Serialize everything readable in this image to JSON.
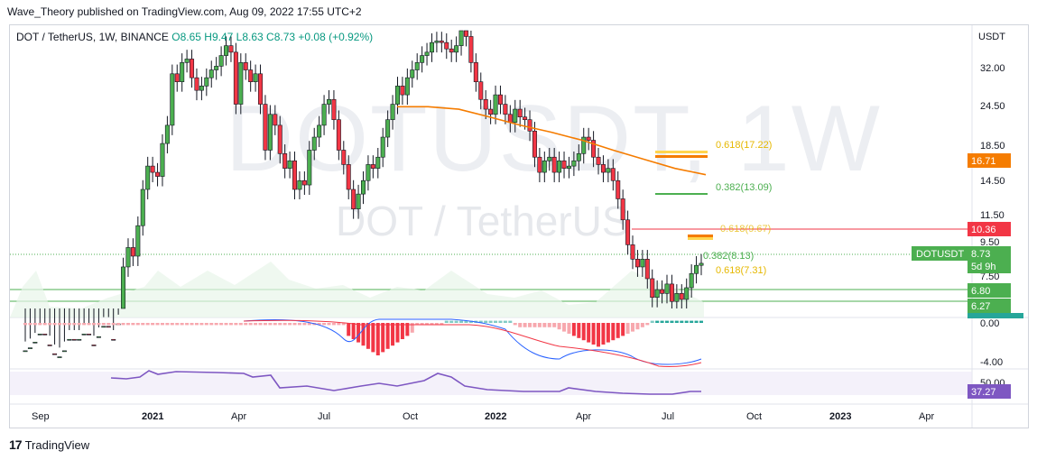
{
  "header": {
    "published": "Wave_Theory published on TradingView.com, Aug 09, 2022 17:55 UTC+2"
  },
  "legend": {
    "symbol": "DOT / TetherUS, 1W, BINANCE",
    "ohlc": "O8.65  H9.47  L8.63  C8.73",
    "change": "+0.08 (+0.92%)"
  },
  "watermark": {
    "main": "DOTUSDT, 1W",
    "sub": "DOT / TetherUS"
  },
  "brand": {
    "name": "TradingView"
  },
  "colors": {
    "up": "#4caf50",
    "down": "#f23645",
    "ma": "#f57c00",
    "fib": "#ffd54f",
    "rsi": "#7e57c2"
  },
  "chart_data": {
    "type": "candlestick",
    "title": "DOT / TetherUS, 1W, BINANCE",
    "currency": "USDT",
    "y_scale": "log",
    "x_ticks": [
      "Sep",
      "2021",
      "Apr",
      "Jul",
      "Oct",
      "2022",
      "Apr",
      "Jul",
      "Oct",
      "2023",
      "Apr"
    ],
    "y_ticks": [
      "32.00",
      "24.50",
      "18.50",
      "14.50",
      "11.50",
      "9.50",
      "7.50",
      "0.00",
      "-4.00",
      "50.00"
    ],
    "price_labels": [
      {
        "value": "16.71",
        "kind": "ma"
      },
      {
        "value": "10.36",
        "kind": "resistance"
      },
      {
        "value": "8.73",
        "kind": "last",
        "symbol": "DOTUSDT",
        "timer": "5d 9h"
      },
      {
        "value": "6.80",
        "kind": "support"
      },
      {
        "value": "6.27",
        "kind": "support"
      },
      {
        "value": "37.27",
        "kind": "rsi"
      }
    ],
    "fib_labels": [
      {
        "text": "0.618(17.22)",
        "color": "#e6b800"
      },
      {
        "text": "0.382(13.09)",
        "color": "#4caf50"
      },
      {
        "text": "0.382(8.13)",
        "color": "#4caf50"
      },
      {
        "text": "0.618(7.31)",
        "color": "#e6b800"
      }
    ],
    "series": [
      {
        "name": "Close",
        "values": [
          4.6,
          4.7,
          4.9,
          5.2,
          4.8,
          4.5,
          4.3,
          4.4,
          4.6,
          5.0,
          4.9,
          5.0,
          5.2,
          4.8,
          4.6,
          5.1,
          5.5,
          5.0,
          4.9,
          5.6,
          8.5,
          9.8,
          9.2,
          11.5,
          15.0,
          17.8,
          17.0,
          16.5,
          21.0,
          24.0,
          35.0,
          33.0,
          38.0,
          39.0,
          34.0,
          31.0,
          32.0,
          34.0,
          36.0,
          37.0,
          40.0,
          43.0,
          41.0,
          28.0,
          38.0,
          36.0,
          33.0,
          35.0,
          28.0,
          20.0,
          26.0,
          24.0,
          19.5,
          17.5,
          18.5,
          15.0,
          16.0,
          15.5,
          20.0,
          22.0,
          24.0,
          28.0,
          29.0,
          25.0,
          20.0,
          18.0,
          15.0,
          13.0,
          14.5,
          16.0,
          18.0,
          17.5,
          19.0,
          22.0,
          25.0,
          28.0,
          32.0,
          30.0,
          34.0,
          36.0,
          38.0,
          40.0,
          41.0,
          44.0,
          44.5,
          44.0,
          42.0,
          41.0,
          43.0,
          48.0,
          46.0,
          38.0,
          33.0,
          29.0,
          27.0,
          26.0,
          30.0,
          28.0,
          26.0,
          24.5,
          27.0,
          25.5,
          25.0,
          23.0,
          19.0,
          17.0,
          18.5,
          19.0,
          17.0,
          18.5,
          17.5,
          17.8,
          18.5,
          19.5,
          22.0,
          21.5,
          19.0,
          18.0,
          17.0,
          17.5,
          16.0,
          14.0,
          12.0,
          10.0,
          9.0,
          8.5,
          9.0,
          7.8,
          6.8,
          7.2,
          7.0,
          7.5,
          6.6,
          7.0,
          6.7,
          7.3,
          8.1,
          8.6,
          8.73
        ]
      },
      {
        "name": "MA",
        "values": [
          27.5,
          27.5,
          27.0,
          25.5,
          24.0,
          22.8,
          21.5,
          20.0,
          18.7,
          17.5,
          16.71
        ]
      }
    ],
    "macd": {
      "levels": [
        "0.00",
        "-4.00"
      ]
    },
    "rsi": {
      "last": 37.27,
      "band_top": 50
    }
  }
}
